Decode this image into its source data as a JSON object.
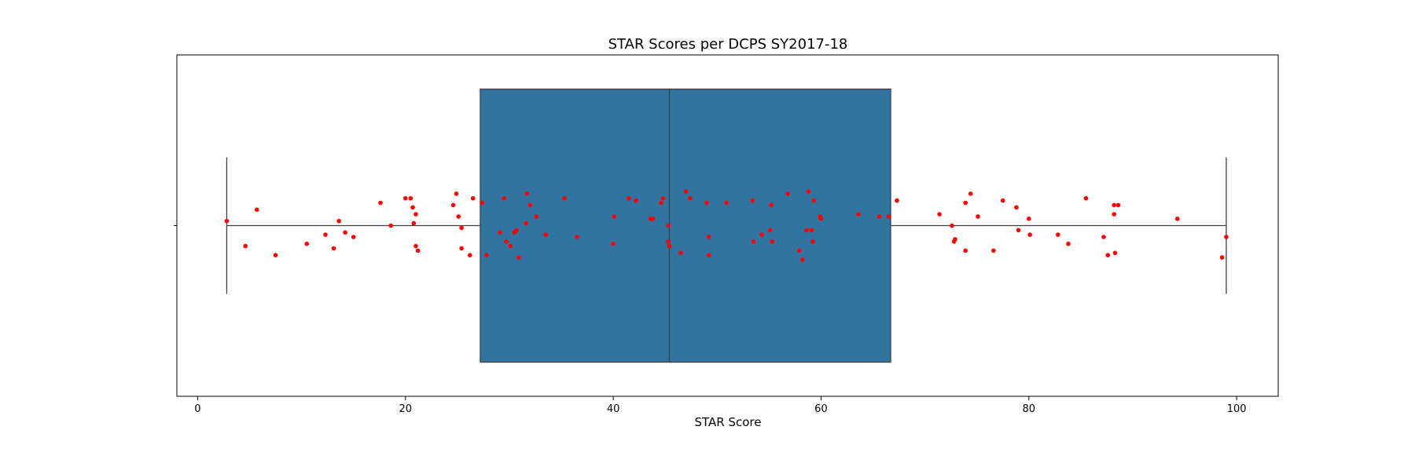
{
  "chart_data": {
    "type": "box",
    "title": "STAR Scores per DCPS SY2017-18",
    "xlabel": "STAR Score",
    "ylabel": "",
    "xlim": [
      -2,
      104
    ],
    "xticks": [
      0,
      20,
      40,
      60,
      80,
      100
    ],
    "xtick_labels": [
      "0",
      "20",
      "40",
      "60",
      "80",
      "100"
    ],
    "grid": false,
    "legend": "none",
    "box": {
      "whisker_low": 2.8,
      "q1": 27.2,
      "median": 45.4,
      "q3": 66.7,
      "whisker_high": 99.0,
      "color": "#3274a1",
      "edge_color": "#3f3f3f"
    },
    "points_color": "#ff0000",
    "points": [
      {
        "x": 2.8,
        "j": -0.02
      },
      {
        "x": 4.6,
        "j": 0.09
      },
      {
        "x": 5.7,
        "j": -0.07
      },
      {
        "x": 7.5,
        "j": 0.13
      },
      {
        "x": 10.5,
        "j": 0.08
      },
      {
        "x": 12.3,
        "j": 0.04
      },
      {
        "x": 13.1,
        "j": 0.1
      },
      {
        "x": 13.6,
        "j": -0.02
      },
      {
        "x": 14.2,
        "j": 0.03
      },
      {
        "x": 15.0,
        "j": 0.05
      },
      {
        "x": 17.6,
        "j": -0.1
      },
      {
        "x": 18.6,
        "j": 0.0
      },
      {
        "x": 20.0,
        "j": -0.12
      },
      {
        "x": 20.5,
        "j": -0.12
      },
      {
        "x": 20.7,
        "j": -0.08
      },
      {
        "x": 21.0,
        "j": -0.05
      },
      {
        "x": 20.8,
        "j": -0.01
      },
      {
        "x": 21.0,
        "j": 0.09
      },
      {
        "x": 21.2,
        "j": 0.11
      },
      {
        "x": 24.6,
        "j": -0.09
      },
      {
        "x": 24.9,
        "j": -0.14
      },
      {
        "x": 25.1,
        "j": -0.04
      },
      {
        "x": 25.4,
        "j": 0.01
      },
      {
        "x": 25.4,
        "j": 0.1
      },
      {
        "x": 26.2,
        "j": 0.13
      },
      {
        "x": 26.5,
        "j": -0.12
      },
      {
        "x": 27.4,
        "j": -0.1
      },
      {
        "x": 27.8,
        "j": 0.13
      },
      {
        "x": 29.1,
        "j": 0.03
      },
      {
        "x": 29.5,
        "j": -0.12
      },
      {
        "x": 29.7,
        "j": 0.07
      },
      {
        "x": 30.1,
        "j": 0.09
      },
      {
        "x": 30.5,
        "j": 0.03
      },
      {
        "x": 30.7,
        "j": 0.02
      },
      {
        "x": 30.9,
        "j": 0.14
      },
      {
        "x": 31.6,
        "j": -0.01
      },
      {
        "x": 31.7,
        "j": -0.14
      },
      {
        "x": 32.0,
        "j": -0.09
      },
      {
        "x": 32.6,
        "j": -0.04
      },
      {
        "x": 33.5,
        "j": 0.04
      },
      {
        "x": 35.3,
        "j": -0.12
      },
      {
        "x": 36.5,
        "j": 0.05
      },
      {
        "x": 40.0,
        "j": 0.08
      },
      {
        "x": 40.1,
        "j": -0.04
      },
      {
        "x": 41.5,
        "j": -0.12
      },
      {
        "x": 42.2,
        "j": -0.11
      },
      {
        "x": 43.6,
        "j": -0.03
      },
      {
        "x": 43.8,
        "j": -0.03
      },
      {
        "x": 44.6,
        "j": -0.1
      },
      {
        "x": 44.8,
        "j": -0.12
      },
      {
        "x": 45.3,
        "j": 0.0
      },
      {
        "x": 45.3,
        "j": 0.07
      },
      {
        "x": 45.4,
        "j": 0.09
      },
      {
        "x": 46.5,
        "j": 0.12
      },
      {
        "x": 47.0,
        "j": -0.15
      },
      {
        "x": 47.4,
        "j": -0.12
      },
      {
        "x": 49.0,
        "j": -0.1
      },
      {
        "x": 49.2,
        "j": 0.05
      },
      {
        "x": 49.2,
        "j": 0.13
      },
      {
        "x": 50.9,
        "j": -0.1
      },
      {
        "x": 53.4,
        "j": -0.11
      },
      {
        "x": 53.5,
        "j": 0.07
      },
      {
        "x": 54.3,
        "j": 0.04
      },
      {
        "x": 55.1,
        "j": 0.02
      },
      {
        "x": 55.2,
        "j": -0.09
      },
      {
        "x": 55.3,
        "j": 0.07
      },
      {
        "x": 56.8,
        "j": -0.14
      },
      {
        "x": 57.9,
        "j": 0.11
      },
      {
        "x": 58.2,
        "j": 0.15
      },
      {
        "x": 58.6,
        "j": 0.02
      },
      {
        "x": 58.8,
        "j": -0.15
      },
      {
        "x": 59.1,
        "j": 0.02
      },
      {
        "x": 59.2,
        "j": 0.07
      },
      {
        "x": 59.3,
        "j": -0.11
      },
      {
        "x": 59.9,
        "j": -0.04
      },
      {
        "x": 60.0,
        "j": -0.03
      },
      {
        "x": 63.6,
        "j": -0.05
      },
      {
        "x": 65.6,
        "j": -0.04
      },
      {
        "x": 66.5,
        "j": -0.04
      },
      {
        "x": 67.3,
        "j": -0.11
      },
      {
        "x": 71.4,
        "j": -0.05
      },
      {
        "x": 72.6,
        "j": 0.0
      },
      {
        "x": 72.8,
        "j": 0.07
      },
      {
        "x": 72.9,
        "j": 0.06
      },
      {
        "x": 73.9,
        "j": -0.1
      },
      {
        "x": 73.9,
        "j": 0.11
      },
      {
        "x": 74.4,
        "j": -0.14
      },
      {
        "x": 75.1,
        "j": -0.04
      },
      {
        "x": 76.6,
        "j": 0.11
      },
      {
        "x": 77.5,
        "j": -0.11
      },
      {
        "x": 78.8,
        "j": -0.08
      },
      {
        "x": 79.0,
        "j": 0.02
      },
      {
        "x": 80.0,
        "j": -0.03
      },
      {
        "x": 80.1,
        "j": 0.04
      },
      {
        "x": 82.8,
        "j": 0.04
      },
      {
        "x": 83.8,
        "j": 0.08
      },
      {
        "x": 85.5,
        "j": -0.12
      },
      {
        "x": 87.2,
        "j": 0.05
      },
      {
        "x": 87.6,
        "j": 0.13
      },
      {
        "x": 88.2,
        "j": -0.05
      },
      {
        "x": 88.2,
        "j": -0.09
      },
      {
        "x": 88.3,
        "j": 0.12
      },
      {
        "x": 88.6,
        "j": -0.09
      },
      {
        "x": 94.3,
        "j": -0.03
      },
      {
        "x": 98.6,
        "j": 0.14
      },
      {
        "x": 99.0,
        "j": 0.05
      }
    ]
  }
}
